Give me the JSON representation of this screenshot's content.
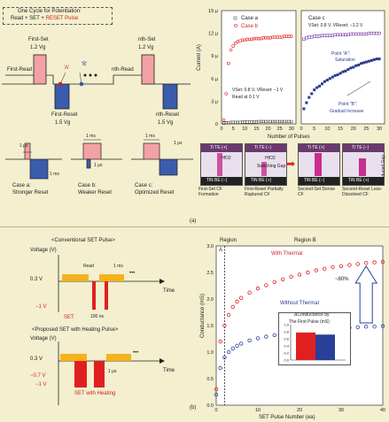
{
  "panel_a": {
    "cycle_title_1": "One Cycle for Potentiation:",
    "cycle_title_2a": "Read + SET + ",
    "cycle_title_2b": "RESET Pulse",
    "first_set": "First-Set",
    "first_set_v": "1.2 Vg",
    "first_read": "First-Read",
    "first_reset": "First-Reset",
    "first_reset_v": "1.5 Vg",
    "nth_set": "nth-Set",
    "nth_set_v": "1.2 Vg",
    "nth_read": "nth-Read",
    "nth_reset": "nth-Reset",
    "nth_reset_v": "1.5 Vg",
    "point_a": "'A'",
    "point_b": "'B'",
    "one_us": "1 μs",
    "one_ms": "1 ms",
    "case_a": "Case a:",
    "case_a_desc": "Stronger Reset",
    "case_b": "Case b:",
    "case_b_desc": "Weaker Reset",
    "case_c": "Case c:",
    "case_c_desc": "Optimized Reset",
    "label": "(a)"
  },
  "chart_left": {
    "ylabel": "Current (A)",
    "legend_a": "Case a",
    "legend_b": "Case b",
    "note1": "VSet: 0.8 V, VReset: −1 V",
    "note2": "Read at 0.1 V",
    "yticks": [
      "0",
      "3 μ",
      "6 μ",
      "9 μ",
      "12 μ",
      "15 μ"
    ],
    "xticks": [
      "0",
      "5",
      "10",
      "15",
      "20",
      "25",
      "30"
    ]
  },
  "chart_right": {
    "title": "Case c",
    "note": "VSet: 0.8 V, VReset: −1.2 V",
    "point_a": "Point \"A\":",
    "point_a_desc": "Saturation",
    "point_b": "Point \"B\":",
    "point_b_desc": "Gradual Increase",
    "xticks": [
      "0",
      "5",
      "10",
      "15",
      "20",
      "25",
      "30"
    ]
  },
  "xlabel_shared": "Number of Pulses",
  "chart_data": [
    {
      "type": "scatter",
      "title": "",
      "xlabel": "Number of Pulses",
      "ylabel": "Current (A)",
      "xlim": [
        0,
        32
      ],
      "ylim": [
        0,
        15
      ],
      "series": [
        {
          "name": "Case a",
          "x": [
            1,
            2,
            3,
            4,
            5,
            6,
            7,
            8,
            9,
            10,
            11,
            12,
            13,
            14,
            15,
            16,
            17,
            18,
            19,
            20,
            21,
            22,
            23,
            24,
            25,
            26,
            27,
            28,
            29,
            30
          ],
          "y": [
            0.1,
            0.15,
            0.15,
            0.2,
            0.2,
            0.2,
            0.2,
            0.2,
            0.25,
            0.25,
            0.25,
            0.25,
            0.25,
            0.25,
            0.25,
            0.3,
            0.3,
            0.3,
            0.3,
            0.3,
            0.3,
            0.3,
            0.3,
            0.3,
            0.3,
            0.3,
            0.3,
            0.3,
            0.3,
            0.3
          ]
        },
        {
          "name": "Case b",
          "x": [
            1,
            2,
            3,
            4,
            5,
            6,
            7,
            8,
            9,
            10,
            11,
            12,
            13,
            14,
            15,
            16,
            17,
            18,
            19,
            20,
            21,
            22,
            23,
            24,
            25,
            26,
            27,
            28,
            29,
            30
          ],
          "y": [
            0.5,
            4,
            8,
            9.8,
            10.3,
            10.7,
            10.9,
            11.0,
            11.1,
            11.1,
            11.2,
            11.2,
            11.2,
            11.3,
            11.3,
            11.3,
            11.3,
            11.4,
            11.4,
            11.4,
            11.4,
            11.5,
            11.5,
            11.5,
            11.5,
            11.5,
            11.6,
            11.6,
            11.6,
            11.6
          ]
        }
      ]
    },
    {
      "type": "scatter",
      "title": "Case c",
      "xlim": [
        0,
        32
      ],
      "ylim": [
        0,
        15
      ],
      "series": [
        {
          "name": "Point A",
          "x": [
            1,
            2,
            3,
            4,
            5,
            6,
            7,
            8,
            9,
            10,
            11,
            12,
            13,
            14,
            15,
            16,
            17,
            18,
            19,
            20,
            21,
            22,
            23,
            24,
            25,
            26,
            27,
            28,
            29,
            30
          ],
          "y": [
            11.2,
            11.4,
            11.5,
            11.5,
            11.6,
            11.6,
            11.6,
            11.7,
            11.7,
            11.7,
            11.7,
            11.7,
            11.8,
            11.8,
            11.8,
            11.8,
            11.8,
            11.8,
            11.9,
            11.9,
            11.9,
            11.9,
            11.9,
            11.9,
            11.9,
            12.0,
            12.0,
            12.0,
            12.0,
            12.0
          ]
        },
        {
          "name": "Point B",
          "x": [
            1,
            2,
            3,
            4,
            5,
            6,
            7,
            8,
            9,
            10,
            11,
            12,
            13,
            14,
            15,
            16,
            17,
            18,
            19,
            20,
            21,
            22,
            23,
            24,
            25,
            26,
            27,
            28,
            29,
            30
          ],
          "y": [
            2.0,
            2.8,
            3.5,
            4.0,
            4.5,
            4.8,
            5.0,
            5.3,
            5.6,
            5.8,
            6.0,
            6.2,
            6.4,
            6.5,
            6.7,
            6.9,
            7.0,
            7.2,
            7.4,
            7.5,
            7.7,
            7.8,
            8.0,
            8.1,
            8.2,
            8.3,
            8.4,
            8.5,
            8.6,
            8.6
          ]
        }
      ]
    },
    {
      "type": "scatter",
      "title": "",
      "xlabel": "SET Pulse Number (ea)",
      "ylabel": "Conductance (mS)",
      "xlim": [
        0,
        40
      ],
      "ylim": [
        0,
        3
      ],
      "series": [
        {
          "name": "With Thermal",
          "x": [
            0,
            1,
            2,
            3,
            4,
            5,
            6,
            8,
            10,
            12,
            14,
            16,
            18,
            20,
            22,
            24,
            26,
            28,
            30,
            32,
            34,
            36,
            38,
            40
          ],
          "y": [
            0.3,
            1.2,
            1.5,
            1.7,
            1.85,
            1.95,
            2.02,
            2.12,
            2.2,
            2.26,
            2.32,
            2.37,
            2.42,
            2.46,
            2.5,
            2.54,
            2.57,
            2.6,
            2.62,
            2.64,
            2.66,
            2.68,
            2.69,
            2.7
          ]
        },
        {
          "name": "Without Thermal",
          "x": [
            0,
            1,
            2,
            3,
            4,
            5,
            6,
            8,
            10,
            12,
            14,
            16,
            18,
            20,
            22,
            24,
            26,
            28,
            30,
            32,
            34,
            36,
            38,
            40
          ],
          "y": [
            0.2,
            0.7,
            0.9,
            1.0,
            1.07,
            1.12,
            1.16,
            1.22,
            1.26,
            1.29,
            1.32,
            1.35,
            1.37,
            1.39,
            1.41,
            1.42,
            1.43,
            1.44,
            1.45,
            1.46,
            1.47,
            1.48,
            1.48,
            1.49
          ]
        }
      ]
    },
    {
      "type": "bar",
      "title": "ΔConductance by The First Pulse (mS)",
      "categories": [
        "With Thermal",
        "Without Thermal"
      ],
      "values": [
        0.78,
        0.72
      ],
      "ylim": [
        0,
        1.0
      ]
    }
  ],
  "cells": {
    "ti_te_plus": "Ti TE (+)",
    "ti_te_minus": "Ti TE (−)",
    "tin_be_minus": "TiN BE (−)",
    "tin_be_plus": "TiN BE (+)",
    "hfo2": "HfO2",
    "switching_gap": "Switching Gap",
    "reduced_gap": "Reduced Gap",
    "c1": "First-Set CF Formation",
    "c2": "First-Reset Partially Ruptured CF",
    "c3": "Second-Set Dense CF",
    "c4": "Second-Reset Less-Dissolved CF"
  },
  "panel_b": {
    "conv_title": "<Conventional SET Pulse>",
    "prop_title": "<Proposed SET with Heating Pulse>",
    "voltage": "Voltage (V)",
    "read": "Read",
    "one_ms": "1 ms",
    "hundred_ns": "100 ns",
    "one_us": "1 μs",
    "set": "SET",
    "set_heating": "SET with Heating",
    "time": "Time",
    "v03": "0.3 V",
    "vm1": "−1 V",
    "vm07": "−0.7 V",
    "dots": "•••",
    "label": "(b)"
  },
  "chart_cond": {
    "region": "Region",
    "region_a": "A",
    "region_b": "Region B",
    "with_thermal": "With Thermal",
    "without_thermal": "Without Thermal",
    "pct": "~80%",
    "ylabel": "Conductance (mS)",
    "xlabel": "SET Pulse Number (ea)",
    "yticks": [
      "0.0",
      "0.5",
      "1.0",
      "1.5",
      "2.0",
      "2.5",
      "3.0"
    ],
    "xticks": [
      "0",
      "10",
      "20",
      "30",
      "40"
    ],
    "inset_title_1": "ΔConductance by",
    "inset_title_2": "The First Pulse (mS)",
    "inset_yticks": [
      "0.0",
      "0.2",
      "0.4",
      "0.6",
      "0.8",
      "1.0"
    ],
    "colors": {
      "red": "#e02020",
      "blue": "#2a3f9a"
    }
  }
}
